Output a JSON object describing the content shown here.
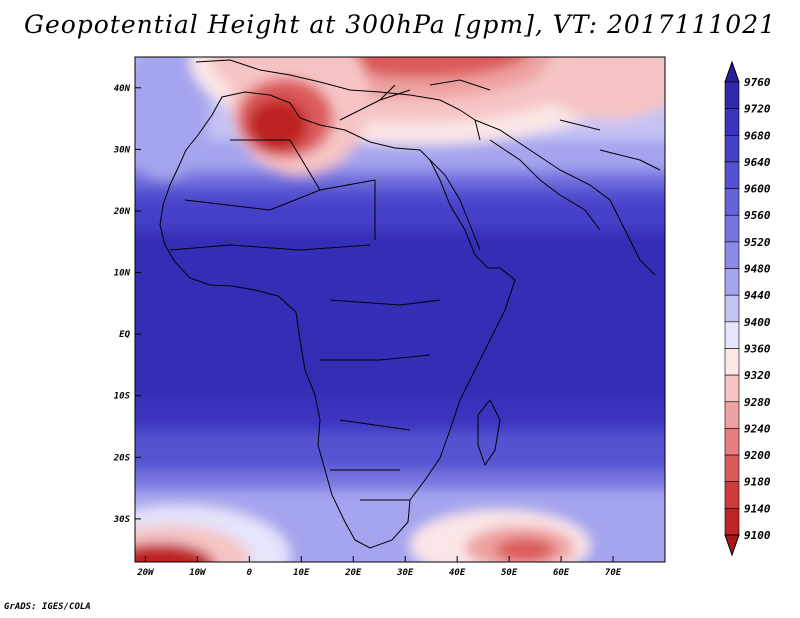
{
  "title": "Geopotential Height at 300hPa [gpm], VT: 2017111021",
  "credit": "GrADS: IGES/COLA",
  "map": {
    "lon_range": [
      -22,
      80
    ],
    "lat_range": [
      -37,
      45
    ],
    "lon_ticks": [
      {
        "value": -20,
        "label": "20W"
      },
      {
        "value": -10,
        "label": "10W"
      },
      {
        "value": 0,
        "label": "0"
      },
      {
        "value": 10,
        "label": "10E"
      },
      {
        "value": 20,
        "label": "20E"
      },
      {
        "value": 30,
        "label": "30E"
      },
      {
        "value": 40,
        "label": "40E"
      },
      {
        "value": 50,
        "label": "50E"
      },
      {
        "value": 60,
        "label": "60E"
      },
      {
        "value": 70,
        "label": "70E"
      }
    ],
    "lat_ticks": [
      {
        "value": 40,
        "label": "40N"
      },
      {
        "value": 30,
        "label": "30N"
      },
      {
        "value": 20,
        "label": "20N"
      },
      {
        "value": 10,
        "label": "10N"
      },
      {
        "value": 0,
        "label": "EQ"
      },
      {
        "value": -10,
        "label": "10S"
      },
      {
        "value": -20,
        "label": "20S"
      },
      {
        "value": -30,
        "label": "30S"
      }
    ]
  },
  "colorbar": {
    "levels": [
      "9760",
      "9720",
      "9680",
      "9640",
      "9600",
      "9560",
      "9520",
      "9480",
      "9440",
      "9400",
      "9360",
      "9320",
      "9280",
      "9240",
      "9200",
      "9180",
      "9140",
      "9100"
    ],
    "colors": [
      "#2a1e9a",
      "#3228b0",
      "#3a34be",
      "#4440c8",
      "#5452d0",
      "#6563d8",
      "#7775e0",
      "#8c8ae6",
      "#a5a4ee",
      "#c4c3f4",
      "#e4e4fa",
      "#fbe7e7",
      "#f6c4c4",
      "#eea2a2",
      "#e67e7e",
      "#dc5a5a",
      "#cf3a3a",
      "#be2424",
      "#a81818"
    ]
  }
}
